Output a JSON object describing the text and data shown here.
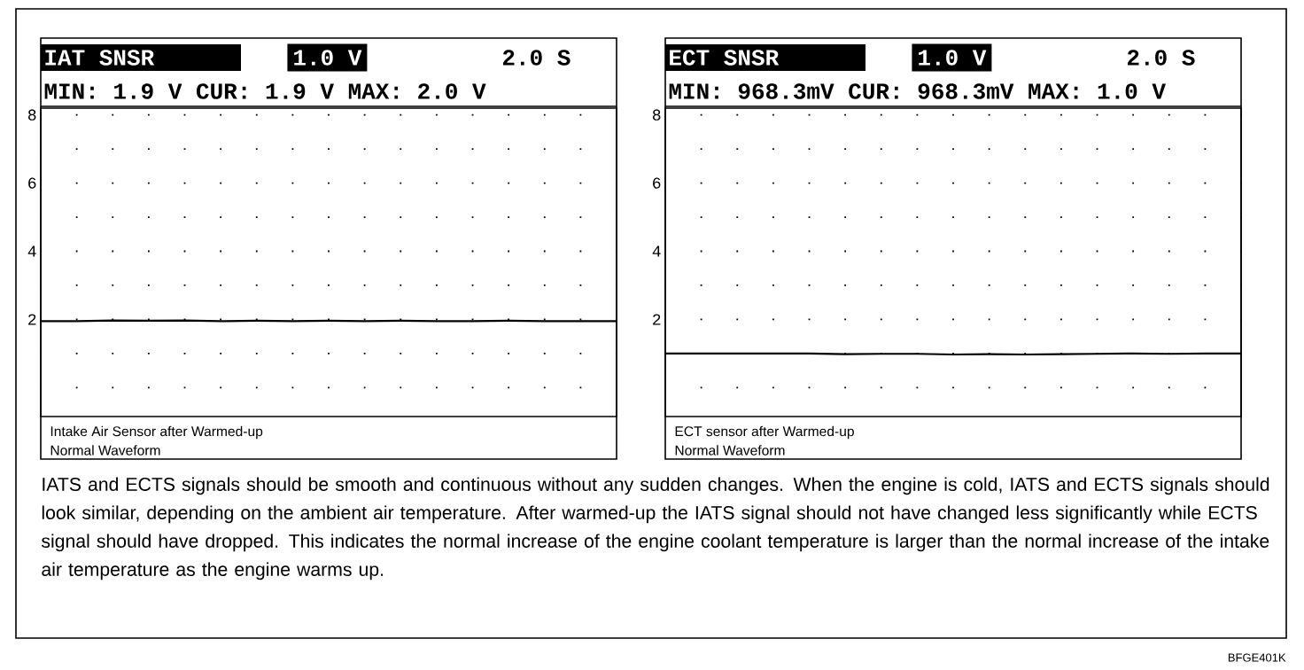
{
  "chart_data": [
    {
      "type": "line",
      "title": "IAT SNSR",
      "subtitle": "MIN: 1.9 V CUR: 1.9 V MAX: 2.0 V",
      "annotations": [
        "1.0 V",
        "2.0 S",
        "Intake Air Sensor after Warmed-up",
        "Normal Waveform"
      ],
      "categories": [
        null,
        null,
        null,
        null,
        null,
        null,
        null,
        null,
        null,
        null,
        null,
        null,
        null,
        null,
        null,
        null,
        null
      ],
      "series": [
        {
          "color": "#000000",
          "values": [
            1.95,
            1.95,
            1.97,
            1.96,
            1.97,
            1.95,
            1.96,
            1.95,
            1.96,
            1.95,
            1.96,
            1.95,
            1.95,
            1.96,
            1.95,
            1.95,
            1.95
          ]
        }
      ],
      "ylim": [
        -0.85,
        8.2
      ],
      "yticks": [
        {
          "value": 0,
          "label": null
        },
        {
          "value": 1,
          "label": null
        },
        2,
        {
          "value": 3,
          "label": null
        },
        4,
        {
          "value": 5,
          "label": null
        },
        6,
        {
          "value": 7,
          "label": null
        },
        8
      ],
      "grid": true,
      "marker": "none",
      "line_style": "solid",
      "tick_labels": "y"
    },
    {
      "type": "line",
      "title": "ECT SNSR",
      "subtitle": "MIN: 968.3mV CUR: 968.3mV MAX: 1.0 V",
      "annotations": [
        "1.0 V",
        "2.0 S",
        "ECT sensor after Warmed-up",
        "Normal Waveform"
      ],
      "categories": [
        null,
        null,
        null,
        null,
        null,
        null,
        null,
        null,
        null,
        null,
        null,
        null,
        null,
        null,
        null,
        null,
        null
      ],
      "series": [
        {
          "color": "#000000",
          "values": [
            1.0,
            1.0,
            1.0,
            1.0,
            1.0,
            0.98,
            0.99,
            0.99,
            0.97,
            0.98,
            0.97,
            0.98,
            0.99,
            1.0,
            0.99,
            1.0,
            1.0
          ]
        }
      ],
      "ylim": [
        -0.85,
        8.2
      ],
      "yticks": [
        {
          "value": 0,
          "label": null
        },
        {
          "value": 1,
          "label": null
        },
        2,
        {
          "value": 3,
          "label": null
        },
        4,
        {
          "value": 5,
          "label": null
        },
        6,
        {
          "value": 7,
          "label": null
        },
        8
      ],
      "grid": true,
      "marker": "none",
      "line_style": "solid",
      "tick_labels": "y"
    },
    {
      "type": "other",
      "annotations": [
        "IATS and ECTS signals should be smooth and continuous without any sudden changes. When the engine is cold, IATS and ECTS signals should look similar, depending on the ambient air temperature. After warmed-up the IATS signal should not have changed less significantly while ECTS signal should have dropped. This indicates the normal increase of the engine coolant temperature is larger than the normal increase of the intake air temperature as the engine warms up.",
        "BFGE401K"
      ]
    }
  ]
}
